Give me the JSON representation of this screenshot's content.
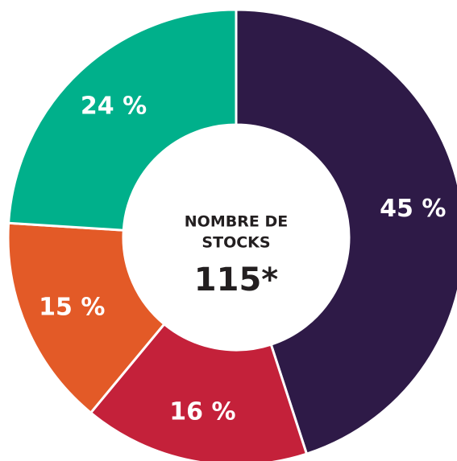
{
  "chart_data": {
    "type": "donut",
    "categories": [
      null,
      null,
      null,
      null
    ],
    "values": [
      45,
      16,
      15,
      24
    ],
    "value_labels": [
      "45 %",
      "16 %",
      "15 %",
      "24 %"
    ],
    "colors": [
      "#2e1a47",
      "#c4213a",
      "#e35a27",
      "#00b08b"
    ],
    "center_label": [
      "NOMBRE DE",
      "STOCKS"
    ],
    "center_value": "115*"
  }
}
